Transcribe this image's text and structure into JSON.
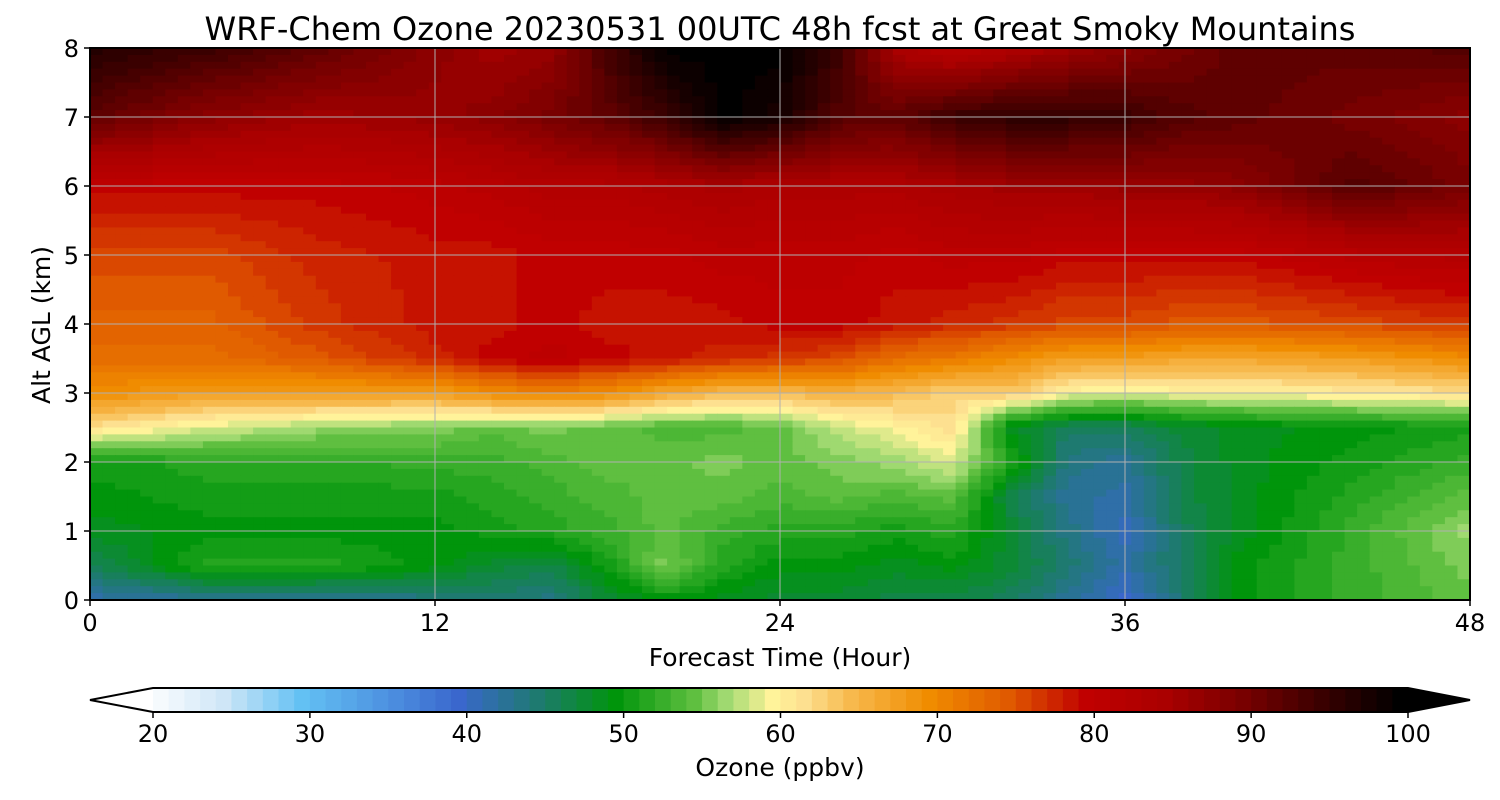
{
  "chart_data": {
    "type": "heatmap",
    "title": "WRF-Chem Ozone  20230531 00UTC 48h fcst at Great Smoky Mountains",
    "xlabel": "Forecast Time (Hour)",
    "ylabel": "Alt AGL (km)",
    "xlim": [
      0,
      48
    ],
    "ylim": [
      0,
      8
    ],
    "xticks": [
      0,
      12,
      24,
      36,
      48
    ],
    "yticks": [
      0,
      1,
      2,
      3,
      4,
      5,
      6,
      7,
      8
    ],
    "grid": true,
    "colorbar": {
      "label": "Ozone  (ppbv)",
      "orientation": "horizontal",
      "position": "bottom",
      "range": [
        20,
        100
      ],
      "ticks": [
        20,
        30,
        40,
        50,
        60,
        70,
        80,
        90,
        100
      ],
      "extend": "both",
      "colors": {
        "20": "#ffffff",
        "25": "#cfe6f7",
        "30": "#63c1f3",
        "35": "#4f95e2",
        "40": "#3a67cd",
        "45": "#1e7a70",
        "50": "#00950b",
        "55": "#5fbf40",
        "57": "#9fd970",
        "60": "#fff39a",
        "62": "#fde090",
        "65": "#f7b94d",
        "70": "#f08c00",
        "75": "#e05a00",
        "80": "#c00000",
        "85": "#aa0000",
        "90": "#780000",
        "95": "#3a0000",
        "100": "#000000"
      }
    },
    "x": [
      0,
      4,
      8,
      12,
      14,
      16,
      18,
      20,
      22,
      24,
      26,
      28,
      30,
      32,
      34,
      36,
      38,
      40,
      44,
      48
    ],
    "y": [
      0,
      0.5,
      1,
      1.5,
      2,
      2.5,
      3,
      3.5,
      4,
      5,
      6,
      7,
      8
    ],
    "z_note": "rows = altitude (km), columns = forecast hour; values in ppbv",
    "z": [
      [
        42,
        43,
        43,
        44,
        45,
        44,
        48,
        50,
        49,
        48,
        48,
        47,
        47,
        46,
        43,
        40,
        45,
        50,
        53,
        55
      ],
      [
        46,
        52,
        52,
        50,
        48,
        47,
        51,
        56,
        52,
        50,
        50,
        49,
        50,
        48,
        45,
        42,
        46,
        50,
        53,
        56
      ],
      [
        49,
        50,
        50,
        50,
        51,
        52,
        53,
        55,
        53,
        52,
        52,
        51,
        52,
        48,
        44,
        41,
        46,
        49,
        53,
        57
      ],
      [
        50,
        51,
        51,
        51,
        52,
        53,
        54,
        55,
        55,
        54,
        55,
        54,
        55,
        47,
        43,
        42,
        47,
        49,
        52,
        55
      ],
      [
        51,
        52,
        52,
        53,
        53,
        54,
        55,
        55,
        56,
        55,
        56,
        57,
        59,
        52,
        44,
        43,
        47,
        49,
        51,
        53
      ],
      [
        62,
        59,
        57,
        56,
        55,
        56,
        55,
        54,
        54,
        55,
        58,
        60,
        62,
        49,
        46,
        46,
        48,
        49,
        50,
        51
      ],
      [
        70,
        68,
        68,
        68,
        70,
        71,
        70,
        67,
        65,
        65,
        66,
        65,
        63,
        64,
        60,
        59,
        60,
        60,
        61,
        62
      ],
      [
        73,
        73,
        75,
        78,
        80,
        81,
        80,
        79,
        78,
        77,
        76,
        73,
        72,
        70,
        68,
        68,
        67,
        67,
        68,
        70
      ],
      [
        74,
        74,
        77,
        79,
        79,
        80,
        79,
        79,
        79,
        80,
        80,
        79,
        78,
        77,
        76,
        76,
        75,
        75,
        76,
        77
      ],
      [
        76,
        76,
        78,
        79,
        79,
        80,
        80,
        80,
        81,
        81,
        81,
        80,
        81,
        81,
        80,
        80,
        80,
        80,
        82,
        83
      ],
      [
        80,
        80,
        80,
        81,
        82,
        83,
        83,
        84,
        85,
        84,
        84,
        84,
        85,
        86,
        86,
        87,
        87,
        88,
        93,
        90
      ],
      [
        92,
        88,
        86,
        87,
        88,
        90,
        92,
        95,
        100,
        98,
        93,
        92,
        95,
        96,
        96,
        95,
        93,
        92,
        90,
        88
      ],
      [
        97,
        95,
        92,
        88,
        86,
        87,
        94,
        100,
        100,
        100,
        95,
        85,
        82,
        84,
        86,
        88,
        90,
        92,
        92,
        93
      ]
    ]
  }
}
